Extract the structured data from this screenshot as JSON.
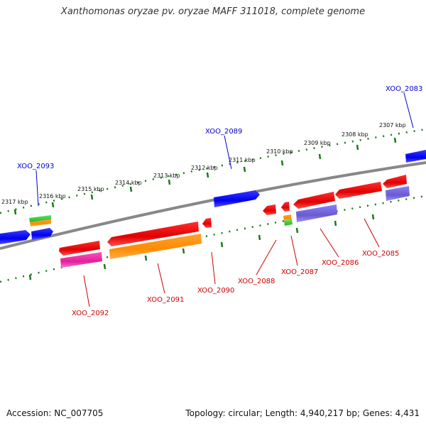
{
  "title": "Xanthomonas oryzae pv. oryzae MAFF 311018, complete genome",
  "footer": {
    "accession": "Accession: NC_007705",
    "summary": "Topology: circular; Length: 4,940,217 bp; Genes: 4,431"
  },
  "colors": {
    "backbone": "#808080",
    "tick": "#1a7a1a",
    "label_top": "#0000cc",
    "label_bottom": "#cc0000"
  },
  "kbp_labels": [
    "2317 kbp",
    "2316 kbp",
    "2315 kbp",
    "2314 kbp",
    "2313 kbp",
    "2312 kbp",
    "2311 kbp",
    "2310 kbp",
    "2309 kbp",
    "2308 kbp",
    "2307 kbp"
  ],
  "gene_labels": [
    "XOO_2093",
    "XOO_2089",
    "XOO_2083",
    "XOO_2092",
    "XOO_2091",
    "XOO_2090",
    "XOO_2088",
    "XOO_2087",
    "XOO_2086",
    "XOO_2085"
  ]
}
